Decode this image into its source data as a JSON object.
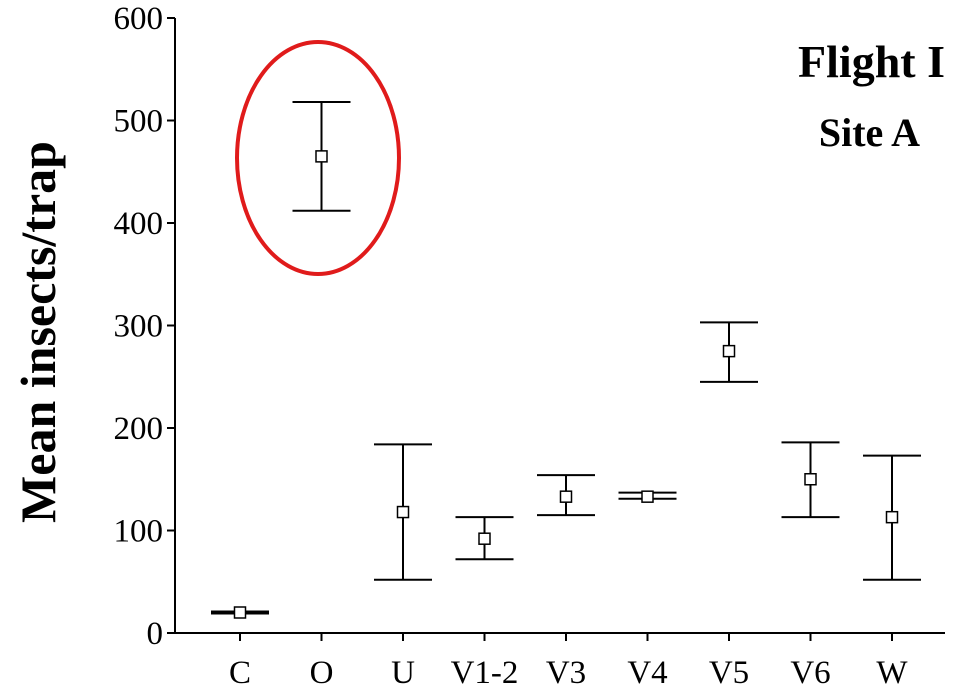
{
  "chart_data": {
    "type": "scatter",
    "title": "Flight I",
    "subtitle": "Site A",
    "xlabel": "",
    "ylabel": "Mean insects/trap",
    "ylim": [
      0,
      600
    ],
    "yticks": [
      0,
      100,
      200,
      300,
      400,
      500,
      600
    ],
    "grid": false,
    "categories": [
      "C",
      "O",
      "U",
      "V1-2",
      "V3",
      "V4",
      "V5",
      "V6",
      "W"
    ],
    "series": [
      {
        "mean": [
          20,
          465,
          118,
          92,
          133,
          133,
          275,
          150,
          113
        ],
        "lower": [
          19,
          412,
          52,
          72,
          115,
          131,
          245,
          113,
          52
        ],
        "upper": [
          21,
          518,
          184,
          113,
          154,
          137,
          303,
          186,
          173
        ]
      }
    ],
    "annotation": "red ellipse highlighting O",
    "colors": {
      "axis": "#000000",
      "highlight": "#e01b1b"
    }
  }
}
